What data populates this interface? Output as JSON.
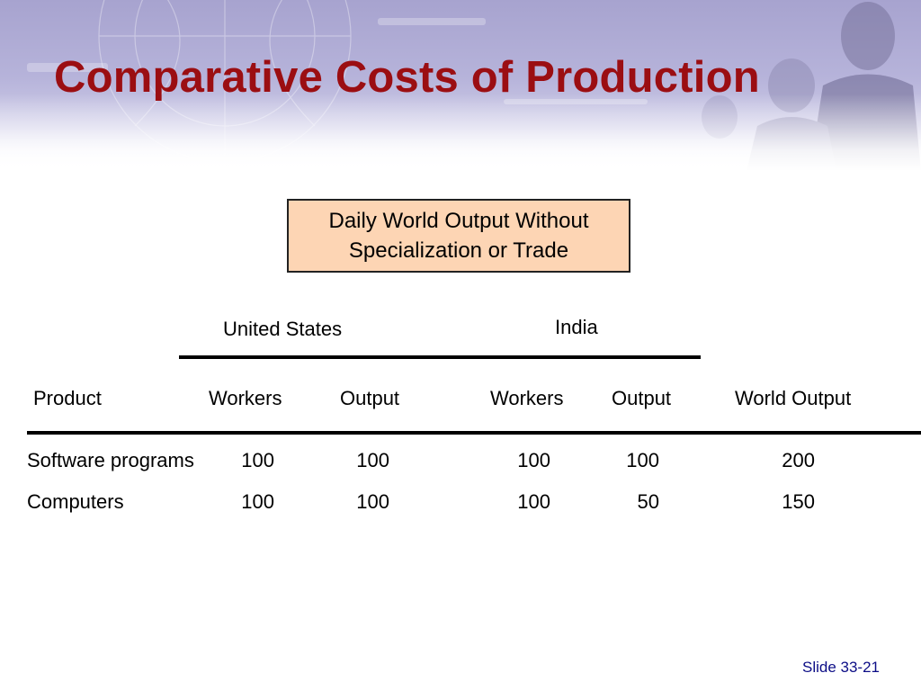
{
  "title": "Comparative Costs of Production",
  "caption": {
    "line1": "Daily World Output Without",
    "line2": "Specialization or Trade"
  },
  "table": {
    "groups": {
      "us": "United States",
      "india": "India"
    },
    "headers": {
      "product": "Product",
      "us_workers": "Workers",
      "us_output": "Output",
      "in_workers": "Workers",
      "in_output": "Output",
      "world_output": "World Output"
    },
    "rows": [
      {
        "product": "Software programs",
        "us_workers": "100",
        "us_output": "100",
        "in_workers": "100",
        "in_output": "100",
        "world_output": "200"
      },
      {
        "product": "Computers",
        "us_workers": "100",
        "us_output": "100",
        "in_workers": "100",
        "in_output": "50",
        "world_output": "150"
      }
    ]
  },
  "footer": {
    "slide_number": "Slide 33-21"
  },
  "colors": {
    "title": "#9b0e12",
    "caption_fill": "#fdd5b4",
    "slide_number": "#0c0d86",
    "banner": "#a7a3cf"
  }
}
